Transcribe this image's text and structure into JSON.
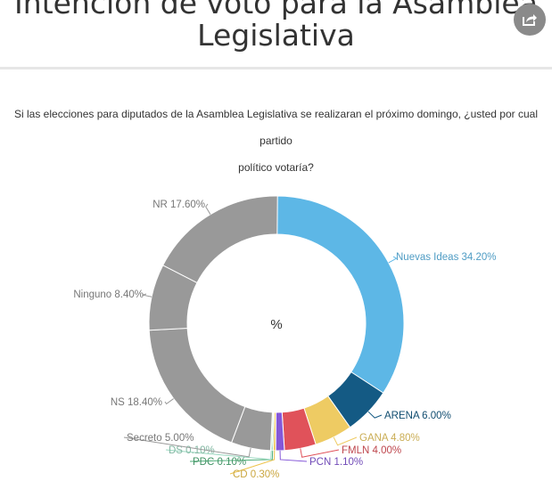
{
  "header": {
    "title_line1": "Intención de voto para la Asamblea",
    "title_line2": "Legislativa",
    "share_icon": "share-icon"
  },
  "subtitle": {
    "line1": "Si las elecciones para diputados de la Asamblea Legislativa se realizaran el próximo domingo, ¿usted por cual partido",
    "line2": "político votaría?"
  },
  "chart_data": {
    "type": "pie",
    "donut": true,
    "center_label": "%",
    "slices": [
      {
        "name": "Nuevas Ideas",
        "value": 34.2,
        "label": "Nuevas Ideas 34.20%",
        "color": "#5db7e6"
      },
      {
        "name": "ARENA",
        "value": 6.0,
        "label": "ARENA 6.00%",
        "color": "#145a84"
      },
      {
        "name": "GANA",
        "value": 4.8,
        "label": "GANA 4.80%",
        "color": "#eecb63"
      },
      {
        "name": "FMLN",
        "value": 4.0,
        "label": "FMLN 4.00%",
        "color": "#e0525a"
      },
      {
        "name": "PCN",
        "value": 1.1,
        "label": "PCN 1.10%",
        "color": "#8558d8"
      },
      {
        "name": "CD",
        "value": 0.3,
        "label": "CD 0.30%",
        "color": "#eec34a"
      },
      {
        "name": "PDC",
        "value": 0.1,
        "label": "PDC 0.10%",
        "color": "#4fae78"
      },
      {
        "name": "DS",
        "value": 0.1,
        "label": "DS 0.10%",
        "color": "#9ad8c0"
      },
      {
        "name": "Secreto",
        "value": 5.0,
        "label": "Secreto 5.00%",
        "color": "#999999"
      },
      {
        "name": "NS",
        "value": 18.4,
        "label": "NS 18.40%",
        "color": "#999999"
      },
      {
        "name": "Ninguno",
        "value": 8.4,
        "label": "Ninguno 8.40%",
        "color": "#999999"
      },
      {
        "name": "NR",
        "value": 17.6,
        "label": "NR 17.60%",
        "color": "#999999"
      }
    ]
  }
}
